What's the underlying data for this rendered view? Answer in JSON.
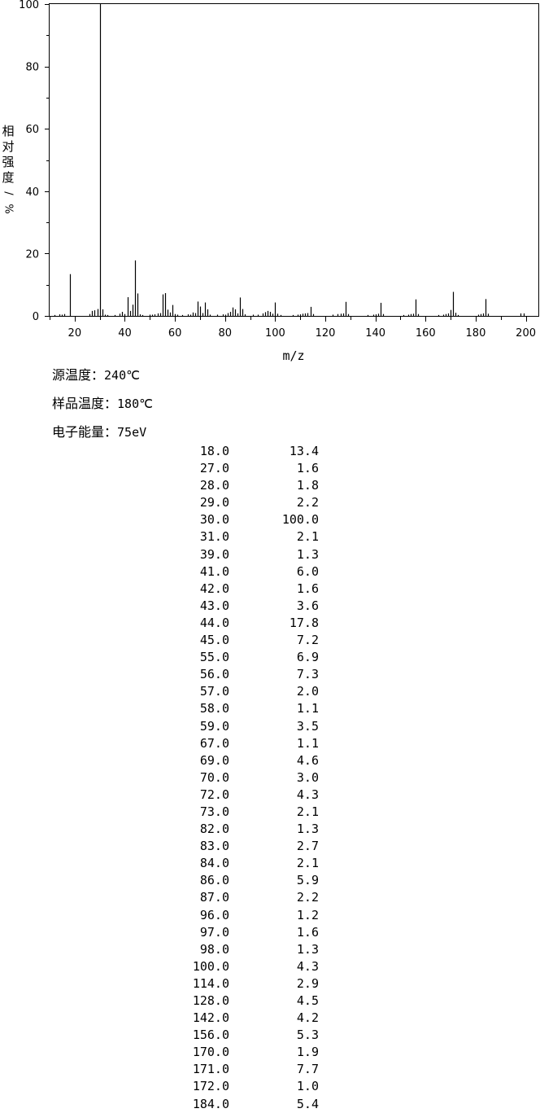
{
  "chart_data": {
    "type": "bar",
    "xlabel": "m/z",
    "ylabel": "相对强度/%",
    "xlim": [
      10,
      205
    ],
    "ylim": [
      0,
      100
    ],
    "xticks": [
      20,
      40,
      60,
      80,
      100,
      120,
      140,
      160,
      180,
      200
    ],
    "yticks": [
      0,
      20,
      40,
      60,
      80,
      100
    ],
    "peaks": [
      {
        "x": 18,
        "y": 13.4
      },
      {
        "x": 27,
        "y": 1.6
      },
      {
        "x": 28,
        "y": 1.8
      },
      {
        "x": 29,
        "y": 2.2
      },
      {
        "x": 30,
        "y": 100.0
      },
      {
        "x": 31,
        "y": 2.1
      },
      {
        "x": 39,
        "y": 1.3
      },
      {
        "x": 41,
        "y": 6.0
      },
      {
        "x": 42,
        "y": 1.6
      },
      {
        "x": 43,
        "y": 3.6
      },
      {
        "x": 44,
        "y": 17.8
      },
      {
        "x": 45,
        "y": 7.2
      },
      {
        "x": 55,
        "y": 6.9
      },
      {
        "x": 56,
        "y": 7.3
      },
      {
        "x": 57,
        "y": 2.0
      },
      {
        "x": 58,
        "y": 1.1
      },
      {
        "x": 59,
        "y": 3.5
      },
      {
        "x": 67,
        "y": 1.1
      },
      {
        "x": 69,
        "y": 4.6
      },
      {
        "x": 70,
        "y": 3.0
      },
      {
        "x": 72,
        "y": 4.3
      },
      {
        "x": 73,
        "y": 2.1
      },
      {
        "x": 82,
        "y": 1.3
      },
      {
        "x": 83,
        "y": 2.7
      },
      {
        "x": 84,
        "y": 2.1
      },
      {
        "x": 86,
        "y": 5.9
      },
      {
        "x": 87,
        "y": 2.2
      },
      {
        "x": 96,
        "y": 1.2
      },
      {
        "x": 97,
        "y": 1.6
      },
      {
        "x": 98,
        "y": 1.3
      },
      {
        "x": 100,
        "y": 4.3
      },
      {
        "x": 114,
        "y": 2.9
      },
      {
        "x": 128,
        "y": 4.5
      },
      {
        "x": 142,
        "y": 4.2
      },
      {
        "x": 156,
        "y": 5.3
      },
      {
        "x": 170,
        "y": 1.9
      },
      {
        "x": 171,
        "y": 7.7
      },
      {
        "x": 172,
        "y": 1.0
      },
      {
        "x": 184,
        "y": 5.4
      }
    ],
    "minor_peaks": [
      {
        "x": 12,
        "y": 0.3
      },
      {
        "x": 14,
        "y": 0.5
      },
      {
        "x": 15,
        "y": 0.4
      },
      {
        "x": 16,
        "y": 0.6
      },
      {
        "x": 26,
        "y": 0.6
      },
      {
        "x": 32,
        "y": 0.4
      },
      {
        "x": 33,
        "y": 0.3
      },
      {
        "x": 36,
        "y": 0.3
      },
      {
        "x": 38,
        "y": 0.7
      },
      {
        "x": 40,
        "y": 0.6
      },
      {
        "x": 46,
        "y": 0.5
      },
      {
        "x": 47,
        "y": 0.3
      },
      {
        "x": 50,
        "y": 0.4
      },
      {
        "x": 51,
        "y": 0.4
      },
      {
        "x": 52,
        "y": 0.5
      },
      {
        "x": 53,
        "y": 0.8
      },
      {
        "x": 54,
        "y": 0.9
      },
      {
        "x": 60,
        "y": 0.6
      },
      {
        "x": 61,
        "y": 0.4
      },
      {
        "x": 63,
        "y": 0.3
      },
      {
        "x": 65,
        "y": 0.5
      },
      {
        "x": 66,
        "y": 0.4
      },
      {
        "x": 68,
        "y": 0.9
      },
      {
        "x": 71,
        "y": 0.9
      },
      {
        "x": 74,
        "y": 0.4
      },
      {
        "x": 77,
        "y": 0.4
      },
      {
        "x": 79,
        "y": 0.5
      },
      {
        "x": 80,
        "y": 0.4
      },
      {
        "x": 81,
        "y": 0.9
      },
      {
        "x": 85,
        "y": 0.8
      },
      {
        "x": 88,
        "y": 0.5
      },
      {
        "x": 91,
        "y": 0.4
      },
      {
        "x": 93,
        "y": 0.4
      },
      {
        "x": 95,
        "y": 0.8
      },
      {
        "x": 99,
        "y": 0.7
      },
      {
        "x": 101,
        "y": 0.7
      },
      {
        "x": 102,
        "y": 0.3
      },
      {
        "x": 107,
        "y": 0.3
      },
      {
        "x": 109,
        "y": 0.4
      },
      {
        "x": 110,
        "y": 0.5
      },
      {
        "x": 111,
        "y": 0.7
      },
      {
        "x": 112,
        "y": 0.8
      },
      {
        "x": 113,
        "y": 0.9
      },
      {
        "x": 115,
        "y": 0.6
      },
      {
        "x": 123,
        "y": 0.4
      },
      {
        "x": 125,
        "y": 0.6
      },
      {
        "x": 126,
        "y": 0.7
      },
      {
        "x": 127,
        "y": 0.8
      },
      {
        "x": 129,
        "y": 0.6
      },
      {
        "x": 137,
        "y": 0.3
      },
      {
        "x": 139,
        "y": 0.4
      },
      {
        "x": 140,
        "y": 0.5
      },
      {
        "x": 141,
        "y": 0.7
      },
      {
        "x": 143,
        "y": 0.6
      },
      {
        "x": 151,
        "y": 0.3
      },
      {
        "x": 153,
        "y": 0.4
      },
      {
        "x": 154,
        "y": 0.6
      },
      {
        "x": 155,
        "y": 0.7
      },
      {
        "x": 157,
        "y": 0.6
      },
      {
        "x": 165,
        "y": 0.3
      },
      {
        "x": 167,
        "y": 0.4
      },
      {
        "x": 168,
        "y": 0.6
      },
      {
        "x": 169,
        "y": 0.8
      },
      {
        "x": 173,
        "y": 0.3
      },
      {
        "x": 181,
        "y": 0.4
      },
      {
        "x": 182,
        "y": 0.6
      },
      {
        "x": 183,
        "y": 0.8
      },
      {
        "x": 185,
        "y": 0.7
      },
      {
        "x": 198,
        "y": 0.8
      },
      {
        "x": 199,
        "y": 0.8
      }
    ]
  },
  "conditions": {
    "source_label": "源温度：",
    "source_value": "240℃",
    "sample_label": "样品温度：",
    "sample_value": "180℃",
    "energy_label": "电子能量：",
    "energy_value": "75eV"
  },
  "peak_table": [
    [
      "18.0",
      "13.4"
    ],
    [
      "27.0",
      "1.6"
    ],
    [
      "28.0",
      "1.8"
    ],
    [
      "29.0",
      "2.2"
    ],
    [
      "30.0",
      "100.0"
    ],
    [
      "31.0",
      "2.1"
    ],
    [
      "39.0",
      "1.3"
    ],
    [
      "41.0",
      "6.0"
    ],
    [
      "42.0",
      "1.6"
    ],
    [
      "43.0",
      "3.6"
    ],
    [
      "44.0",
      "17.8"
    ],
    [
      "45.0",
      "7.2"
    ],
    [
      "55.0",
      "6.9"
    ],
    [
      "56.0",
      "7.3"
    ],
    [
      "57.0",
      "2.0"
    ],
    [
      "58.0",
      "1.1"
    ],
    [
      "59.0",
      "3.5"
    ],
    [
      "67.0",
      "1.1"
    ],
    [
      "69.0",
      "4.6"
    ],
    [
      "70.0",
      "3.0"
    ],
    [
      "72.0",
      "4.3"
    ],
    [
      "73.0",
      "2.1"
    ],
    [
      "82.0",
      "1.3"
    ],
    [
      "83.0",
      "2.7"
    ],
    [
      "84.0",
      "2.1"
    ],
    [
      "86.0",
      "5.9"
    ],
    [
      "87.0",
      "2.2"
    ],
    [
      "96.0",
      "1.2"
    ],
    [
      "97.0",
      "1.6"
    ],
    [
      "98.0",
      "1.3"
    ],
    [
      "100.0",
      "4.3"
    ],
    [
      "114.0",
      "2.9"
    ],
    [
      "128.0",
      "4.5"
    ],
    [
      "142.0",
      "4.2"
    ],
    [
      "156.0",
      "5.3"
    ],
    [
      "170.0",
      "1.9"
    ],
    [
      "171.0",
      "7.7"
    ],
    [
      "172.0",
      "1.0"
    ],
    [
      "184.0",
      "5.4"
    ]
  ]
}
